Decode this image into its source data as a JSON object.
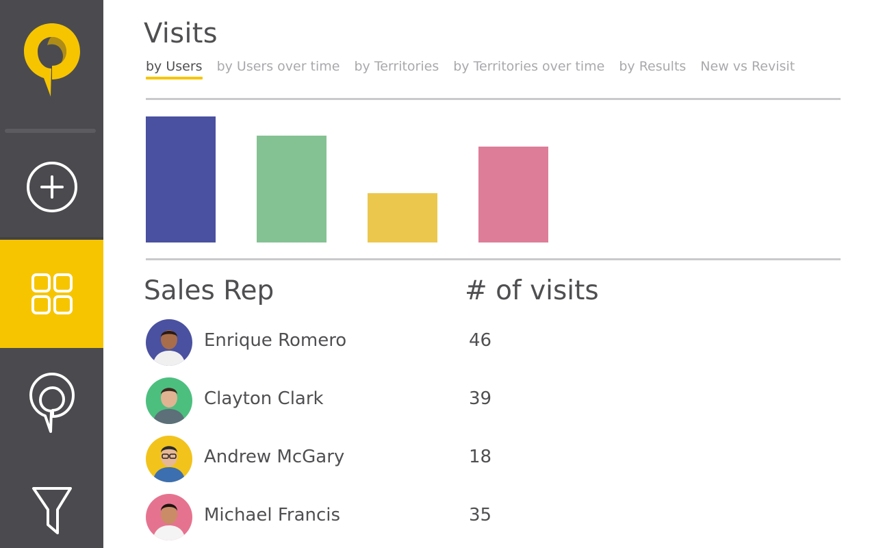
{
  "sidebar": {
    "logo_icon": "map-pin-logo-icon",
    "items": [
      {
        "icon": "plus-circle-icon",
        "active": false
      },
      {
        "icon": "grid-icon",
        "active": true
      },
      {
        "icon": "map-pin-icon",
        "active": false
      },
      {
        "icon": "filter-icon",
        "active": false
      }
    ],
    "colors": {
      "background": "#4b4b4f",
      "active": "#f6c500"
    }
  },
  "page": {
    "title": "Visits"
  },
  "tabs": [
    {
      "label": "by Users",
      "active": true
    },
    {
      "label": "by Users over time",
      "active": false
    },
    {
      "label": "by Territories",
      "active": false
    },
    {
      "label": "by Territories over time",
      "active": false
    },
    {
      "label": "by Results",
      "active": false
    },
    {
      "label": "New vs Revisit",
      "active": false
    }
  ],
  "chart_data": {
    "type": "bar",
    "categories": [
      "Enrique Romero",
      "Clayton Clark",
      "Andrew McGary",
      "Michael Francis"
    ],
    "values": [
      46,
      39,
      18,
      35
    ],
    "colors": [
      "#4a51a0",
      "#85c293",
      "#ecc74d",
      "#dd7d98"
    ],
    "title": "",
    "xlabel": "",
    "ylabel": "",
    "ylim": [
      0,
      51
    ],
    "grid": false,
    "legend": "none"
  },
  "table": {
    "headers": {
      "rep": "Sales Rep",
      "visits": "# of visits"
    },
    "rows": [
      {
        "name": "Enrique Romero",
        "visits": "46",
        "avatar_color": "#4a51a0"
      },
      {
        "name": "Clayton Clark",
        "visits": "39",
        "avatar_color": "#4cbf7f"
      },
      {
        "name": "Andrew McGary",
        "visits": "18",
        "avatar_color": "#f2c31b"
      },
      {
        "name": "Michael Francis",
        "visits": "35",
        "avatar_color": "#e5738f"
      }
    ]
  }
}
